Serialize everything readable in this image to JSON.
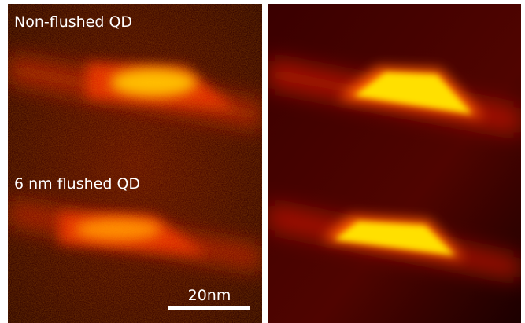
{
  "panels": {
    "left": {
      "labels": [
        "Non-flushed QD",
        "6 nm flushed QD"
      ],
      "scale_bar": "20nm"
    }
  }
}
